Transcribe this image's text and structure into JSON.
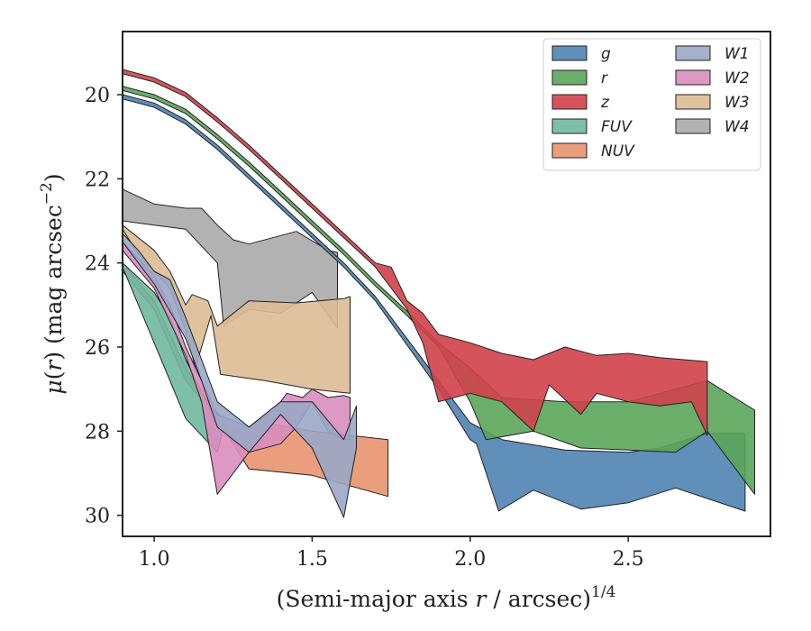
{
  "chart_data": {
    "type": "area",
    "xlabel": "(Semi-major axis r / arcsec)^1/4",
    "ylabel": "μ(r) (mag arcsec−2)",
    "xlim": [
      0.9,
      2.95
    ],
    "ylim": [
      30.5,
      18.5
    ],
    "y_inverted": true,
    "x_ticks": [
      1.0,
      1.5,
      2.0,
      2.5
    ],
    "x_tick_labels": [
      "1.0",
      "1.5",
      "2.0",
      "2.5"
    ],
    "y_ticks": [
      20,
      22,
      24,
      26,
      28,
      30
    ],
    "y_tick_labels": [
      "20",
      "22",
      "24",
      "26",
      "28",
      "30"
    ],
    "grid": false,
    "legend_position": "top-right",
    "legend_columns": 2,
    "series": [
      {
        "name": "W4",
        "color": "#aaaaaa",
        "upper": [
          [
            0.9,
            22.25
          ],
          [
            1.0,
            22.6
          ],
          [
            1.1,
            22.7
          ],
          [
            1.15,
            22.7
          ],
          [
            1.2,
            23.1
          ],
          [
            1.25,
            23.45
          ],
          [
            1.3,
            23.55
          ],
          [
            1.45,
            23.25
          ],
          [
            1.55,
            23.7
          ],
          [
            1.58,
            23.75
          ]
        ],
        "lower": [
          [
            0.9,
            23.0
          ],
          [
            1.0,
            23.1
          ],
          [
            1.1,
            23.2
          ],
          [
            1.2,
            24.0
          ],
          [
            1.22,
            25.5
          ],
          [
            1.3,
            25.1
          ],
          [
            1.4,
            25.2
          ],
          [
            1.5,
            24.7
          ],
          [
            1.58,
            25.55
          ]
        ]
      },
      {
        "name": "W3",
        "color": "#ddbb94",
        "upper": [
          [
            0.9,
            23.1
          ],
          [
            1.0,
            23.7
          ],
          [
            1.05,
            24.2
          ],
          [
            1.1,
            25.0
          ],
          [
            1.12,
            24.75
          ],
          [
            1.17,
            24.9
          ],
          [
            1.2,
            25.5
          ],
          [
            1.3,
            24.9
          ],
          [
            1.45,
            24.95
          ],
          [
            1.6,
            24.85
          ],
          [
            1.62,
            24.8
          ]
        ],
        "lower": [
          [
            0.9,
            23.2
          ],
          [
            0.95,
            23.8
          ],
          [
            1.05,
            24.6
          ],
          [
            1.1,
            25.6
          ],
          [
            1.13,
            26.5
          ],
          [
            1.18,
            25.25
          ],
          [
            1.21,
            26.65
          ],
          [
            1.35,
            26.8
          ],
          [
            1.5,
            27.0
          ],
          [
            1.62,
            27.1
          ]
        ]
      },
      {
        "name": "NUV",
        "color": "#e9936f",
        "upper": [
          [
            0.9,
            24.0
          ],
          [
            1.0,
            24.9
          ],
          [
            1.1,
            26.5
          ],
          [
            1.17,
            27.3
          ],
          [
            1.25,
            28.0
          ],
          [
            1.35,
            27.8
          ],
          [
            1.5,
            28.0
          ],
          [
            1.74,
            28.2
          ]
        ],
        "lower": [
          [
            0.9,
            24.2
          ],
          [
            1.0,
            25.1
          ],
          [
            1.1,
            26.8
          ],
          [
            1.2,
            27.7
          ],
          [
            1.3,
            28.9
          ],
          [
            1.5,
            29.05
          ],
          [
            1.74,
            29.55
          ]
        ]
      },
      {
        "name": "FUV",
        "color": "#6fb89e",
        "upper": [
          [
            0.9,
            24.0
          ],
          [
            1.0,
            24.7
          ],
          [
            1.05,
            25.3
          ],
          [
            1.1,
            26.3
          ],
          [
            1.17,
            27.35
          ],
          [
            1.22,
            27.8
          ]
        ],
        "lower": [
          [
            0.9,
            24.1
          ],
          [
            1.0,
            25.9
          ],
          [
            1.1,
            27.7
          ],
          [
            1.2,
            28.5
          ],
          [
            1.22,
            27.9
          ]
        ]
      },
      {
        "name": "W2",
        "color": "#d98dbe",
        "upper": [
          [
            0.9,
            23.5
          ],
          [
            1.0,
            24.3
          ],
          [
            1.05,
            25.0
          ],
          [
            1.1,
            26.0
          ],
          [
            1.15,
            26.8
          ],
          [
            1.2,
            27.6
          ],
          [
            1.3,
            27.9
          ],
          [
            1.38,
            27.5
          ],
          [
            1.42,
            27.1
          ],
          [
            1.47,
            27.2
          ],
          [
            1.5,
            27.0
          ],
          [
            1.55,
            27.2
          ],
          [
            1.6,
            27.15
          ],
          [
            1.62,
            27.2
          ]
        ],
        "lower": [
          [
            0.9,
            23.7
          ],
          [
            1.0,
            24.6
          ],
          [
            1.1,
            26.2
          ],
          [
            1.15,
            27.3
          ],
          [
            1.2,
            29.5
          ],
          [
            1.25,
            29.0
          ],
          [
            1.3,
            28.5
          ],
          [
            1.4,
            28.3
          ],
          [
            1.45,
            27.9
          ],
          [
            1.5,
            27.3
          ],
          [
            1.55,
            28.0
          ],
          [
            1.6,
            28.2
          ],
          [
            1.62,
            28.2
          ]
        ]
      },
      {
        "name": "W1",
        "color": "#9aa7c7",
        "upper": [
          [
            0.9,
            23.3
          ],
          [
            0.95,
            23.7
          ],
          [
            1.0,
            24.2
          ],
          [
            1.05,
            24.4
          ],
          [
            1.1,
            25.3
          ],
          [
            1.15,
            26.3
          ],
          [
            1.2,
            27.3
          ],
          [
            1.3,
            27.9
          ],
          [
            1.4,
            27.3
          ],
          [
            1.5,
            27.3
          ],
          [
            1.6,
            28.2
          ],
          [
            1.64,
            27.4
          ]
        ],
        "lower": [
          [
            0.9,
            23.5
          ],
          [
            0.95,
            24.0
          ],
          [
            1.0,
            24.5
          ],
          [
            1.1,
            25.8
          ],
          [
            1.15,
            26.8
          ],
          [
            1.2,
            27.9
          ],
          [
            1.3,
            28.5
          ],
          [
            1.4,
            27.6
          ],
          [
            1.5,
            28.4
          ],
          [
            1.6,
            30.05
          ],
          [
            1.64,
            28.4
          ]
        ]
      },
      {
        "name": "g",
        "color": "#4f83b3",
        "upper": [
          [
            0.9,
            20.0
          ],
          [
            1.0,
            20.2
          ],
          [
            1.1,
            20.6
          ],
          [
            1.2,
            21.2
          ],
          [
            1.3,
            21.9
          ],
          [
            1.4,
            22.6
          ],
          [
            1.5,
            23.3
          ],
          [
            1.6,
            24.0
          ],
          [
            1.7,
            24.8
          ],
          [
            1.8,
            25.8
          ],
          [
            1.9,
            26.8
          ],
          [
            2.0,
            27.8
          ],
          [
            2.1,
            28.2
          ],
          [
            2.3,
            28.45
          ],
          [
            2.5,
            28.5
          ],
          [
            2.6,
            28.4
          ],
          [
            2.75,
            28.05
          ],
          [
            2.87,
            28.05
          ]
        ],
        "lower": [
          [
            0.9,
            20.1
          ],
          [
            1.0,
            20.3
          ],
          [
            1.1,
            20.7
          ],
          [
            1.2,
            21.3
          ],
          [
            1.3,
            22.0
          ],
          [
            1.4,
            22.7
          ],
          [
            1.5,
            23.4
          ],
          [
            1.6,
            24.1
          ],
          [
            1.7,
            24.9
          ],
          [
            1.8,
            25.95
          ],
          [
            1.9,
            27.0
          ],
          [
            2.0,
            28.2
          ],
          [
            2.02,
            28.3
          ],
          [
            2.09,
            29.9
          ],
          [
            2.2,
            29.4
          ],
          [
            2.35,
            29.85
          ],
          [
            2.5,
            29.7
          ],
          [
            2.65,
            29.35
          ],
          [
            2.75,
            29.6
          ],
          [
            2.87,
            29.9
          ]
        ]
      },
      {
        "name": "r",
        "color": "#5aa55a",
        "upper": [
          [
            0.9,
            19.8
          ],
          [
            1.0,
            20.0
          ],
          [
            1.1,
            20.35
          ],
          [
            1.2,
            20.95
          ],
          [
            1.3,
            21.6
          ],
          [
            1.4,
            22.3
          ],
          [
            1.5,
            23.0
          ],
          [
            1.6,
            23.7
          ],
          [
            1.7,
            24.45
          ],
          [
            1.8,
            25.15
          ],
          [
            1.9,
            25.9
          ],
          [
            2.0,
            26.5
          ],
          [
            2.1,
            27.2
          ],
          [
            2.3,
            27.3
          ],
          [
            2.5,
            27.3
          ],
          [
            2.75,
            26.8
          ],
          [
            2.9,
            27.5
          ]
        ],
        "lower": [
          [
            0.9,
            19.9
          ],
          [
            1.0,
            20.1
          ],
          [
            1.1,
            20.45
          ],
          [
            1.2,
            21.05
          ],
          [
            1.3,
            21.7
          ],
          [
            1.4,
            22.4
          ],
          [
            1.5,
            23.1
          ],
          [
            1.6,
            23.8
          ],
          [
            1.7,
            24.55
          ],
          [
            1.8,
            25.25
          ],
          [
            1.9,
            26.0
          ],
          [
            2.0,
            27.3
          ],
          [
            2.05,
            28.2
          ],
          [
            2.2,
            28.0
          ],
          [
            2.35,
            28.4
          ],
          [
            2.5,
            28.45
          ],
          [
            2.65,
            28.5
          ],
          [
            2.75,
            28.0
          ],
          [
            2.9,
            29.5
          ]
        ]
      },
      {
        "name": "z",
        "color": "#d0414a",
        "upper": [
          [
            0.9,
            19.4
          ],
          [
            1.0,
            19.6
          ],
          [
            1.1,
            19.95
          ],
          [
            1.2,
            20.55
          ],
          [
            1.3,
            21.2
          ],
          [
            1.4,
            21.9
          ],
          [
            1.5,
            22.6
          ],
          [
            1.6,
            23.3
          ],
          [
            1.7,
            24.0
          ],
          [
            1.75,
            24.1
          ],
          [
            1.8,
            24.9
          ],
          [
            1.85,
            25.2
          ],
          [
            1.9,
            25.7
          ],
          [
            2.0,
            25.9
          ],
          [
            2.1,
            26.15
          ],
          [
            2.2,
            26.3
          ],
          [
            2.3,
            26.0
          ],
          [
            2.4,
            26.2
          ],
          [
            2.5,
            26.15
          ],
          [
            2.6,
            26.25
          ],
          [
            2.75,
            26.35
          ]
        ],
        "lower": [
          [
            0.9,
            19.5
          ],
          [
            1.0,
            19.7
          ],
          [
            1.1,
            20.05
          ],
          [
            1.2,
            20.65
          ],
          [
            1.3,
            21.3
          ],
          [
            1.4,
            22.0
          ],
          [
            1.5,
            22.7
          ],
          [
            1.6,
            23.4
          ],
          [
            1.7,
            24.1
          ],
          [
            1.8,
            25.1
          ],
          [
            1.85,
            25.9
          ],
          [
            1.9,
            27.3
          ],
          [
            2.0,
            27.1
          ],
          [
            2.1,
            27.3
          ],
          [
            2.2,
            28.0
          ],
          [
            2.25,
            26.9
          ],
          [
            2.35,
            27.6
          ],
          [
            2.4,
            27.1
          ],
          [
            2.5,
            27.3
          ],
          [
            2.6,
            27.4
          ],
          [
            2.7,
            27.3
          ],
          [
            2.75,
            28.1
          ]
        ]
      }
    ],
    "legend": [
      "g",
      "r",
      "z",
      "FUV",
      "NUV",
      "W1",
      "W2",
      "W3",
      "W4"
    ]
  }
}
